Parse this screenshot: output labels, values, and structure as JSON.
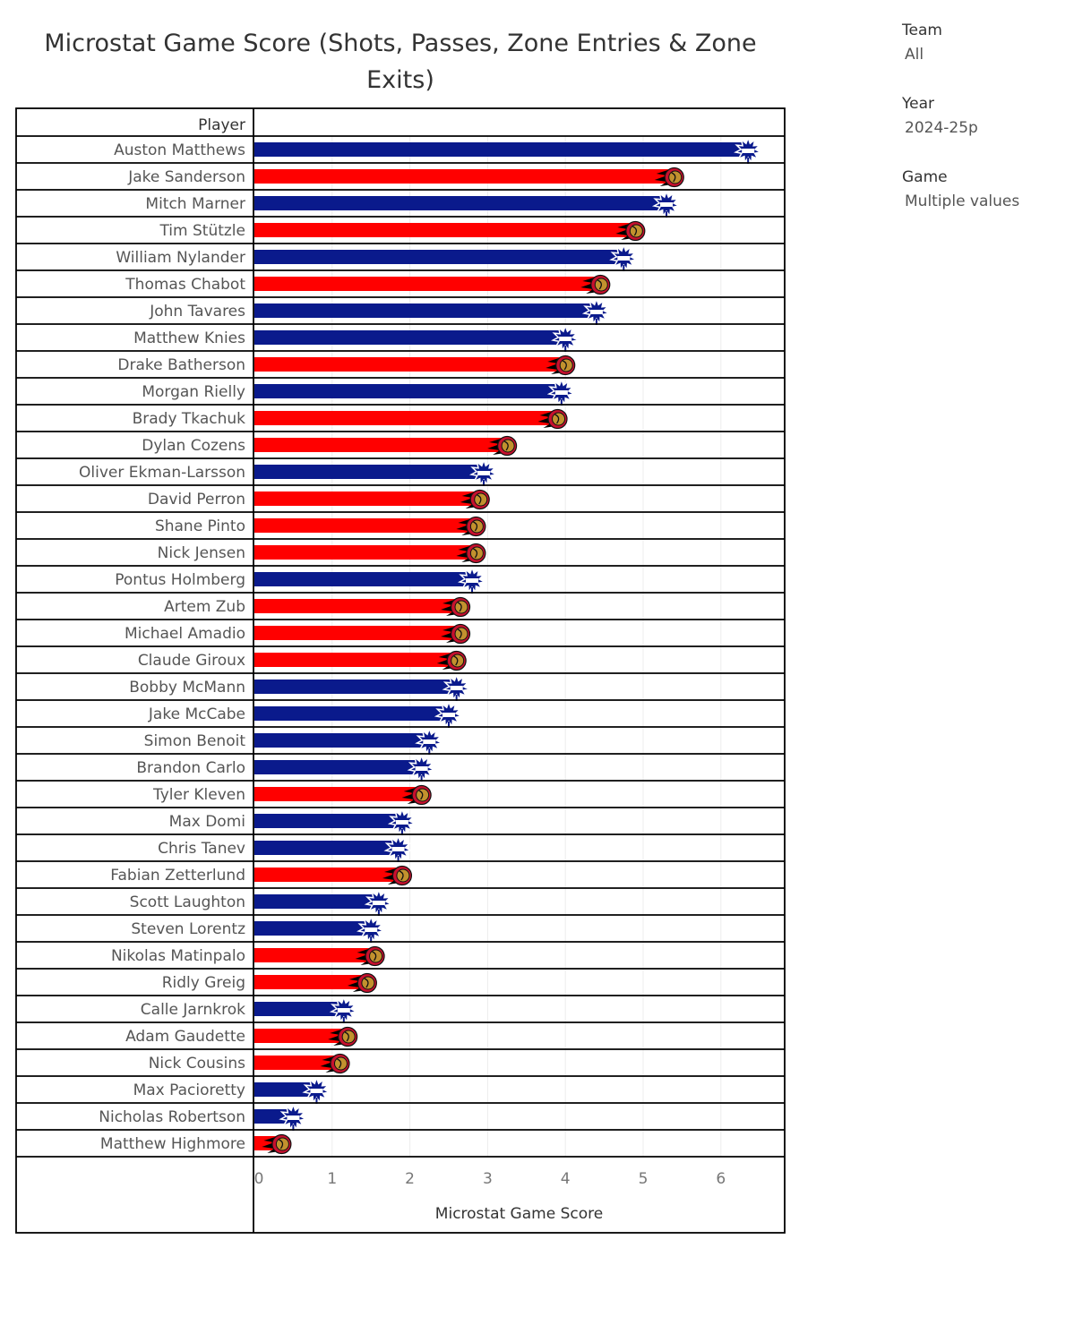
{
  "title": "Microstat Game Score (Shots, Passes, Zone Entries & Zone Exits)",
  "filters": [
    {
      "label": "Team",
      "value": "All"
    },
    {
      "label": "Year",
      "value": "2024-25p"
    },
    {
      "label": "Game",
      "value": "Multiple values"
    }
  ],
  "colors": {
    "TOR": "#0a1a8c",
    "OTT": "#ff0000"
  },
  "icons": {
    "TOR": "maple-leaf-logo-icon",
    "OTT": "senators-logo-icon"
  },
  "chart_data": {
    "type": "bar",
    "orientation": "horizontal",
    "row_header": "Player",
    "xlabel": "Microstat Game Score",
    "xlim": [
      0,
      6.8
    ],
    "xticks": [
      0,
      1,
      2,
      3,
      4,
      5,
      6
    ],
    "grid": true,
    "rows": [
      {
        "player": "Auston Matthews",
        "team": "TOR",
        "value": 6.35
      },
      {
        "player": "Jake Sanderson",
        "team": "OTT",
        "value": 5.4
      },
      {
        "player": "Mitch Marner",
        "team": "TOR",
        "value": 5.3
      },
      {
        "player": "Tim Stützle",
        "team": "OTT",
        "value": 4.9
      },
      {
        "player": "William Nylander",
        "team": "TOR",
        "value": 4.75
      },
      {
        "player": "Thomas Chabot",
        "team": "OTT",
        "value": 4.45
      },
      {
        "player": "John Tavares",
        "team": "TOR",
        "value": 4.4
      },
      {
        "player": "Matthew Knies",
        "team": "TOR",
        "value": 4.0
      },
      {
        "player": "Drake Batherson",
        "team": "OTT",
        "value": 4.0
      },
      {
        "player": "Morgan Rielly",
        "team": "TOR",
        "value": 3.95
      },
      {
        "player": "Brady Tkachuk",
        "team": "OTT",
        "value": 3.9
      },
      {
        "player": "Dylan Cozens",
        "team": "OTT",
        "value": 3.25
      },
      {
        "player": "Oliver Ekman-Larsson",
        "team": "TOR",
        "value": 2.95
      },
      {
        "player": "David Perron",
        "team": "OTT",
        "value": 2.9
      },
      {
        "player": "Shane Pinto",
        "team": "OTT",
        "value": 2.85
      },
      {
        "player": "Nick Jensen",
        "team": "OTT",
        "value": 2.85
      },
      {
        "player": "Pontus Holmberg",
        "team": "TOR",
        "value": 2.8
      },
      {
        "player": "Artem Zub",
        "team": "OTT",
        "value": 2.65
      },
      {
        "player": "Michael Amadio",
        "team": "OTT",
        "value": 2.65
      },
      {
        "player": "Claude Giroux",
        "team": "OTT",
        "value": 2.6
      },
      {
        "player": "Bobby McMann",
        "team": "TOR",
        "value": 2.6
      },
      {
        "player": "Jake McCabe",
        "team": "TOR",
        "value": 2.5
      },
      {
        "player": "Simon Benoit",
        "team": "TOR",
        "value": 2.25
      },
      {
        "player": "Brandon Carlo",
        "team": "TOR",
        "value": 2.15
      },
      {
        "player": "Tyler Kleven",
        "team": "OTT",
        "value": 2.15
      },
      {
        "player": "Max Domi",
        "team": "TOR",
        "value": 1.9
      },
      {
        "player": "Chris Tanev",
        "team": "TOR",
        "value": 1.85
      },
      {
        "player": "Fabian Zetterlund",
        "team": "OTT",
        "value": 1.9
      },
      {
        "player": "Scott Laughton",
        "team": "TOR",
        "value": 1.6
      },
      {
        "player": "Steven Lorentz",
        "team": "TOR",
        "value": 1.5
      },
      {
        "player": "Nikolas Matinpalo",
        "team": "OTT",
        "value": 1.55
      },
      {
        "player": "Ridly Greig",
        "team": "OTT",
        "value": 1.45
      },
      {
        "player": "Calle Jarnkrok",
        "team": "TOR",
        "value": 1.15
      },
      {
        "player": "Adam Gaudette",
        "team": "OTT",
        "value": 1.2
      },
      {
        "player": "Nick Cousins",
        "team": "OTT",
        "value": 1.1
      },
      {
        "player": "Max Pacioretty",
        "team": "TOR",
        "value": 0.8
      },
      {
        "player": "Nicholas Robertson",
        "team": "TOR",
        "value": 0.5
      },
      {
        "player": "Matthew Highmore",
        "team": "OTT",
        "value": 0.35
      }
    ]
  }
}
